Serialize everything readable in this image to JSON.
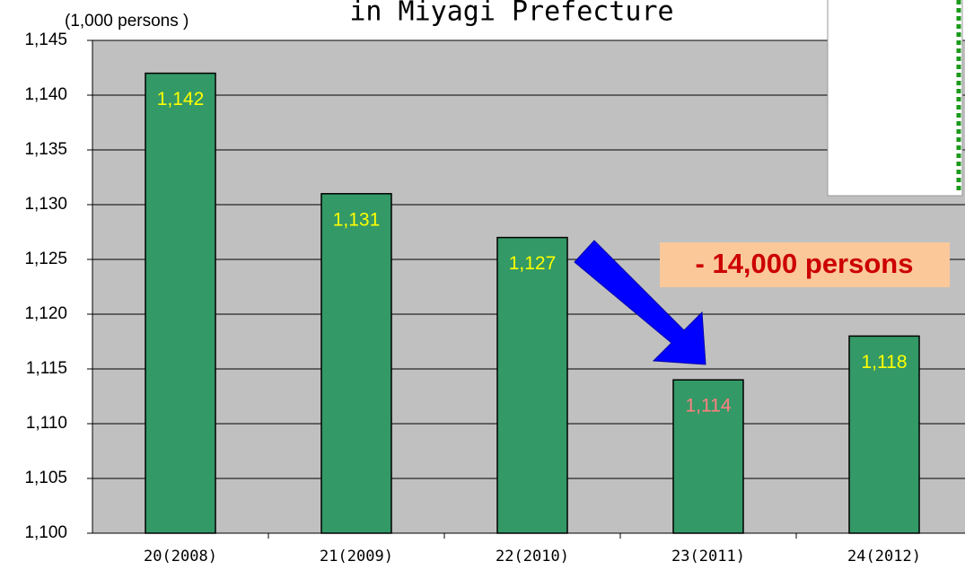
{
  "chart_data": {
    "type": "bar",
    "title": "in Miyagi Prefecture",
    "y_axis_label": "(1,000 persons )",
    "categories": [
      "20(2008)",
      "21(2009)",
      "22(2010)",
      "23(2011)",
      "24(2012)"
    ],
    "values": [
      1142,
      1131,
      1127,
      1114,
      1118
    ],
    "value_labels": [
      "1,142",
      "1,131",
      "1,127",
      "1,114",
      "1,118"
    ],
    "label_colors": [
      "#ffff00",
      "#ffff00",
      "#ffff00",
      "#ff8080",
      "#ffff00"
    ],
    "color": "#339966",
    "annotation": "- 14,000 persons",
    "ylim": [
      1100,
      1145
    ],
    "yticks": [
      {
        "value": 1100,
        "label": "1,100"
      },
      {
        "value": 1105,
        "label": "1,105"
      },
      {
        "value": 1110,
        "label": "1,110"
      },
      {
        "value": 1115,
        "label": "1,115"
      },
      {
        "value": 1120,
        "label": "1,120"
      },
      {
        "value": 1125,
        "label": "1,125"
      },
      {
        "value": 1130,
        "label": "1,130"
      },
      {
        "value": 1135,
        "label": "1,135"
      },
      {
        "value": 1140,
        "label": "1,140"
      },
      {
        "value": 1145,
        "label": "1,145"
      }
    ],
    "grid": true
  }
}
